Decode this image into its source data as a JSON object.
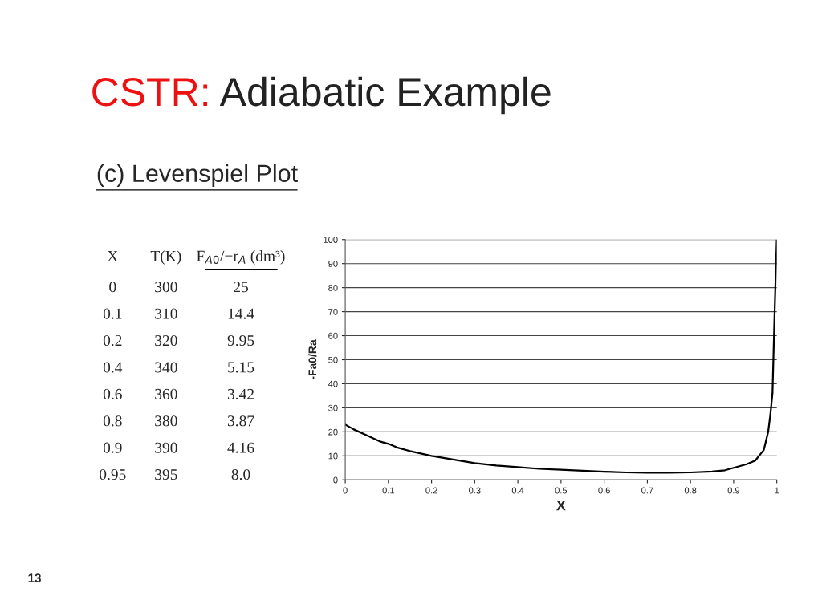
{
  "chart_data": {
    "type": "line",
    "title": "CSTR: Adiabatic Example",
    "subtitle": "(c) Levenspiel Plot",
    "xlabel": "X",
    "ylabel": "-Fa0/Ra",
    "annotations": [
      "X",
      "T(K)",
      "F$_{A0}$/−r$_{A}$ (dm³)",
      "0",
      "300",
      "25",
      "0.1",
      "310",
      "14.4",
      "0.2",
      "320",
      "9.95",
      "0.4",
      "340",
      "5.15",
      "0.6",
      "360",
      "3.42",
      "0.8",
      "380",
      "3.87",
      "0.9",
      "390",
      "4.16",
      "0.95",
      "395",
      "8.0",
      "13"
    ],
    "x": [
      0,
      0.02,
      0.05,
      0.08,
      0.1,
      0.12,
      0.15,
      0.2,
      0.25,
      0.3,
      0.35,
      0.4,
      0.45,
      0.5,
      0.55,
      0.6,
      0.65,
      0.7,
      0.75,
      0.8,
      0.85,
      0.88,
      0.9,
      0.93,
      0.95,
      0.97,
      0.98,
      0.985,
      0.99,
      0.995,
      1.0
    ],
    "series": [
      {
        "color": "#000000",
        "values": [
          23,
          21,
          18.5,
          16,
          15,
          13.5,
          12,
          10,
          8.5,
          7,
          6,
          5.3,
          4.6,
          4.2,
          3.8,
          3.4,
          3.1,
          3.0,
          3.0,
          3.1,
          3.5,
          4,
          5,
          6.5,
          8,
          12.5,
          20,
          27,
          36,
          70,
          100
        ]
      }
    ],
    "xlim": [
      0,
      1
    ],
    "xticks": [
      0,
      0.1,
      0.2,
      0.3,
      0.4,
      0.5,
      0.6,
      0.7,
      0.8,
      0.9,
      1
    ],
    "ylim": [
      0,
      100
    ],
    "yticks": [
      0,
      10,
      20,
      30,
      40,
      50,
      60,
      70,
      80,
      90,
      100
    ],
    "grid": "y",
    "legend": false,
    "marker": "none",
    "line_style": "solid"
  }
}
